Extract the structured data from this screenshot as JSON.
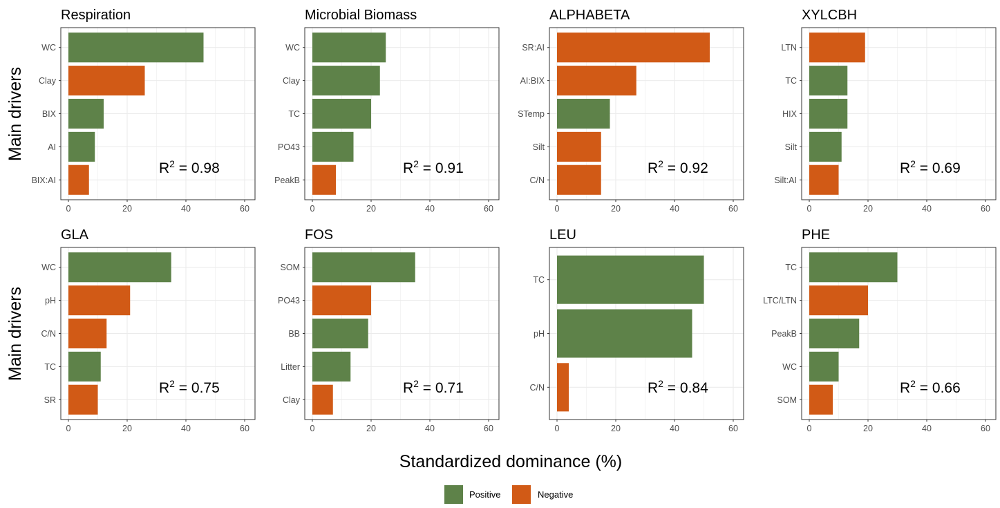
{
  "colors": {
    "positive": "#5e8249",
    "negative": "#d15a16",
    "grid": "#ebebeb",
    "border": "#333333"
  },
  "legend": {
    "positive_label": "Positive",
    "negative_label": "Negative"
  },
  "axis_labels": {
    "y": "Main drivers",
    "x": "Standardized dominance (%)"
  },
  "chart_data": [
    {
      "type": "bar",
      "orientation": "horizontal",
      "title": "Respiration",
      "xlim": [
        0,
        60
      ],
      "xticks": [
        0,
        20,
        40,
        60
      ],
      "categories": [
        "WC",
        "Clay",
        "BIX",
        "AI",
        "BIX:AI"
      ],
      "values": [
        46,
        26,
        12,
        9,
        7
      ],
      "effect": [
        "Positive",
        "Negative",
        "Positive",
        "Positive",
        "Negative"
      ],
      "r2_value": "0.98"
    },
    {
      "type": "bar",
      "orientation": "horizontal",
      "title": "Microbial Biomass",
      "xlim": [
        0,
        60
      ],
      "xticks": [
        0,
        20,
        40,
        60
      ],
      "categories": [
        "WC",
        "Clay",
        "TC",
        "PO43",
        "PeakB"
      ],
      "values": [
        25,
        23,
        20,
        14,
        8
      ],
      "effect": [
        "Positive",
        "Positive",
        "Positive",
        "Positive",
        "Negative"
      ],
      "r2_value": "0.91"
    },
    {
      "type": "bar",
      "orientation": "horizontal",
      "title": "ALPHABETA",
      "xlim": [
        0,
        60
      ],
      "xticks": [
        0,
        20,
        40,
        60
      ],
      "categories": [
        "SR:AI",
        "AI:BIX",
        "STemp",
        "Silt",
        "C/N"
      ],
      "values": [
        52,
        27,
        18,
        15,
        15
      ],
      "effect": [
        "Negative",
        "Negative",
        "Positive",
        "Negative",
        "Negative"
      ],
      "r2_value": "0.92"
    },
    {
      "type": "bar",
      "orientation": "horizontal",
      "title": "XYLCBH",
      "xlim": [
        0,
        60
      ],
      "xticks": [
        0,
        20,
        40,
        60
      ],
      "categories": [
        "LTN",
        "TC",
        "HIX",
        "Silt",
        "Silt:AI"
      ],
      "values": [
        19,
        13,
        13,
        11,
        10
      ],
      "effect": [
        "Negative",
        "Positive",
        "Positive",
        "Positive",
        "Negative"
      ],
      "r2_value": "0.69"
    },
    {
      "type": "bar",
      "orientation": "horizontal",
      "title": "GLA",
      "xlim": [
        0,
        60
      ],
      "xticks": [
        0,
        20,
        40,
        60
      ],
      "categories": [
        "WC",
        "pH",
        "C/N",
        "TC",
        "SR"
      ],
      "values": [
        35,
        21,
        13,
        11,
        10
      ],
      "effect": [
        "Positive",
        "Negative",
        "Negative",
        "Positive",
        "Negative"
      ],
      "r2_value": "0.75"
    },
    {
      "type": "bar",
      "orientation": "horizontal",
      "title": "FOS",
      "xlim": [
        0,
        60
      ],
      "xticks": [
        0,
        20,
        40,
        60
      ],
      "categories": [
        "SOM",
        "PO43",
        "BB",
        "Litter",
        "Clay"
      ],
      "values": [
        35,
        20,
        19,
        13,
        7
      ],
      "effect": [
        "Positive",
        "Negative",
        "Positive",
        "Positive",
        "Negative"
      ],
      "r2_value": "0.71"
    },
    {
      "type": "bar",
      "orientation": "horizontal",
      "title": "LEU",
      "xlim": [
        0,
        60
      ],
      "xticks": [
        0,
        20,
        40,
        60
      ],
      "categories": [
        "TC",
        "pH",
        "C/N"
      ],
      "values": [
        50,
        46,
        4
      ],
      "effect": [
        "Positive",
        "Positive",
        "Negative"
      ],
      "r2_value": "0.84"
    },
    {
      "type": "bar",
      "orientation": "horizontal",
      "title": "PHE",
      "xlim": [
        0,
        60
      ],
      "xticks": [
        0,
        20,
        40,
        60
      ],
      "categories": [
        "TC",
        "LTC/LTN",
        "PeakB",
        "WC",
        "SOM"
      ],
      "values": [
        30,
        20,
        17,
        10,
        8
      ],
      "effect": [
        "Positive",
        "Negative",
        "Positive",
        "Positive",
        "Negative"
      ],
      "r2_value": "0.66"
    }
  ]
}
